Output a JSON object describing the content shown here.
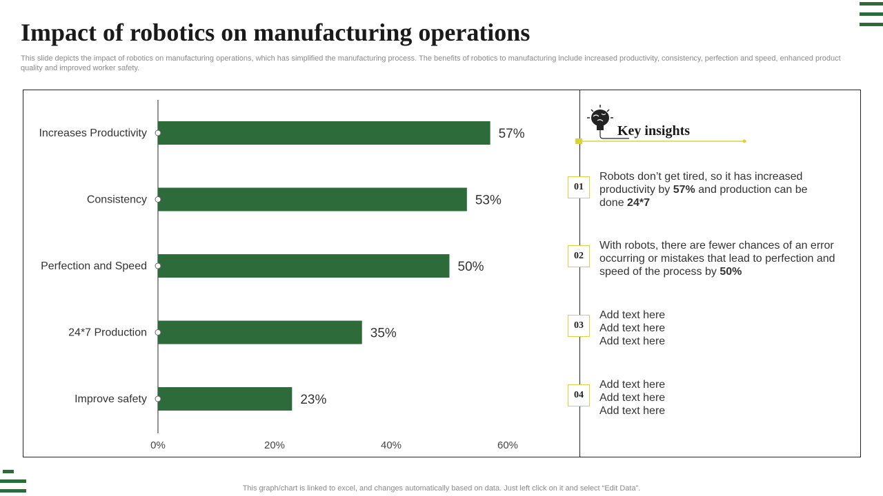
{
  "header": {
    "title": "Impact of robotics on manufacturing operations",
    "subtitle": "This slide depicts the impact of robotics on manufacturing operations, which has simplified the manufacturing process. The benefits of robotics to manufacturing include increased productivity, consistency, perfection and speed, enhanced product quality and improved worker safety."
  },
  "colors": {
    "bar": "#2e6b3a",
    "accent": "#d8d33a",
    "text": "#333333"
  },
  "chart_data": {
    "type": "bar",
    "orientation": "horizontal",
    "categories": [
      "Increases Productivity",
      "Consistency",
      "Perfection and Speed",
      "24*7 Production",
      "Improve  safety"
    ],
    "values": [
      57,
      53,
      50,
      35,
      23
    ],
    "value_labels": [
      "57%",
      "53%",
      "50%",
      "35%",
      "23%"
    ],
    "xlim": [
      0,
      60
    ],
    "x_ticks": [
      0,
      20,
      40,
      60
    ],
    "x_tick_labels": [
      "0%",
      "20%",
      "40%",
      "60%"
    ],
    "title": "",
    "xlabel": "",
    "ylabel": "",
    "grid": false,
    "legend": "none"
  },
  "insights": {
    "title": "Key insights",
    "icon": "brain-bulb-icon",
    "items": [
      {
        "num": "01",
        "lines": [
          "Robots don’t get tired, so it has increased",
          "productivity by ",
          "57%",
          " and production can be",
          "done ",
          "24*7"
        ]
      },
      {
        "num": "02",
        "lines": [
          "With robots, there are fewer chances of an error",
          "occurring or mistakes that lead to perfection and",
          "speed of the process by ",
          "50%"
        ]
      },
      {
        "num": "03",
        "lines": [
          "Add text here",
          "Add text here",
          "Add text here"
        ]
      },
      {
        "num": "04",
        "lines": [
          "Add text here",
          "Add text here",
          "Add text here"
        ]
      }
    ]
  },
  "footnote": "This graph/chart is linked to excel,  and changes automatically based on data. Just left click on it and select “Edit Data”."
}
